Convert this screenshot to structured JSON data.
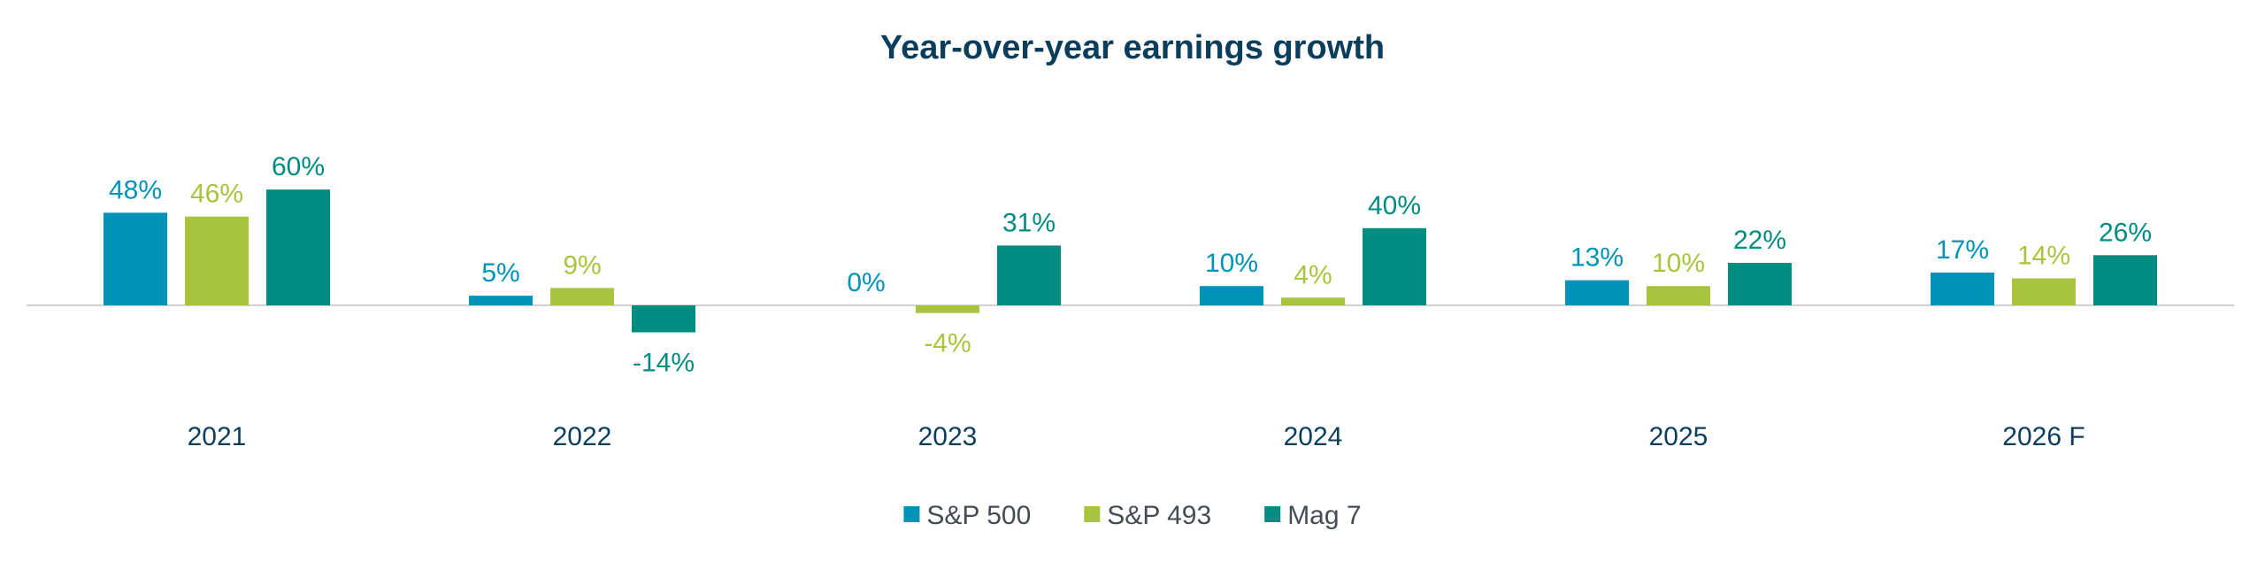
{
  "chart_data": {
    "type": "bar",
    "title": "Year-over-year earnings growth",
    "xlabel": "",
    "ylabel": "",
    "categories": [
      "2021",
      "2022",
      "2023",
      "2024",
      "2025",
      "2026 F"
    ],
    "series": [
      {
        "name": "S&P 500",
        "color": "#0093b8",
        "values": [
          48,
          5,
          0,
          10,
          13,
          17
        ]
      },
      {
        "name": "S&P 493",
        "color": "#a8c43e",
        "values": [
          46,
          9,
          -4,
          4,
          10,
          14
        ]
      },
      {
        "name": "Mag 7",
        "color": "#008c80",
        "values": [
          60,
          -14,
          31,
          40,
          22,
          26
        ]
      }
    ],
    "value_labels": [
      [
        "48%",
        "5%",
        "0%",
        "10%",
        "13%",
        "17%"
      ],
      [
        "46%",
        "9%",
        "-4%",
        "4%",
        "10%",
        "14%"
      ],
      [
        "60%",
        "-14%",
        "31%",
        "40%",
        "22%",
        "26%"
      ]
    ],
    "value_suffix": "%",
    "ylim": [
      -14,
      60
    ],
    "grid": false,
    "legend_position": "bottom-center",
    "axis_color": "#d0d0d0"
  }
}
